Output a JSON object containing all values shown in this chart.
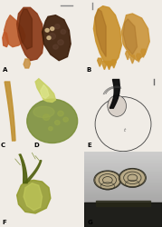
{
  "figure_bg": "#f0ece6",
  "label_fontsize": 5,
  "label_color": "#000000",
  "dpi": 100,
  "figsize": [
    1.79,
    2.5
  ],
  "panels": {
    "A": {
      "bg": "#e8e0d4",
      "cephalothorax_color": "#8B3A18",
      "cephalothorax_dark": "#5a2208",
      "leg_color": "#c06030",
      "abdomen_color": "#3d1e0a",
      "spot_color": "#d4b888"
    },
    "B": {
      "bg": "#ede8e0",
      "body_color": "#c8902a",
      "body_dark": "#a06820"
    },
    "CD": {
      "bg": "#e8e2d8",
      "chel_color": "#c09030",
      "chel_highlight": "#e0b050",
      "bulb_color": "#7a8e38",
      "bulb_highlight": "#a0b050",
      "bulb_top": "#c8d060"
    },
    "E": {
      "bg": "#f4f0ec",
      "line_color": "#404040",
      "embolus_color": "#0a0a0a",
      "fill_color": "#d8d0c8"
    },
    "F": {
      "bg": "#e8e0d4",
      "body_color": "#909828",
      "spine_color": "#506010",
      "highlight": "#c8d060"
    },
    "G": {
      "bg": "#909880",
      "structure_color": "#c8b890",
      "dark_color": "#181810"
    }
  }
}
